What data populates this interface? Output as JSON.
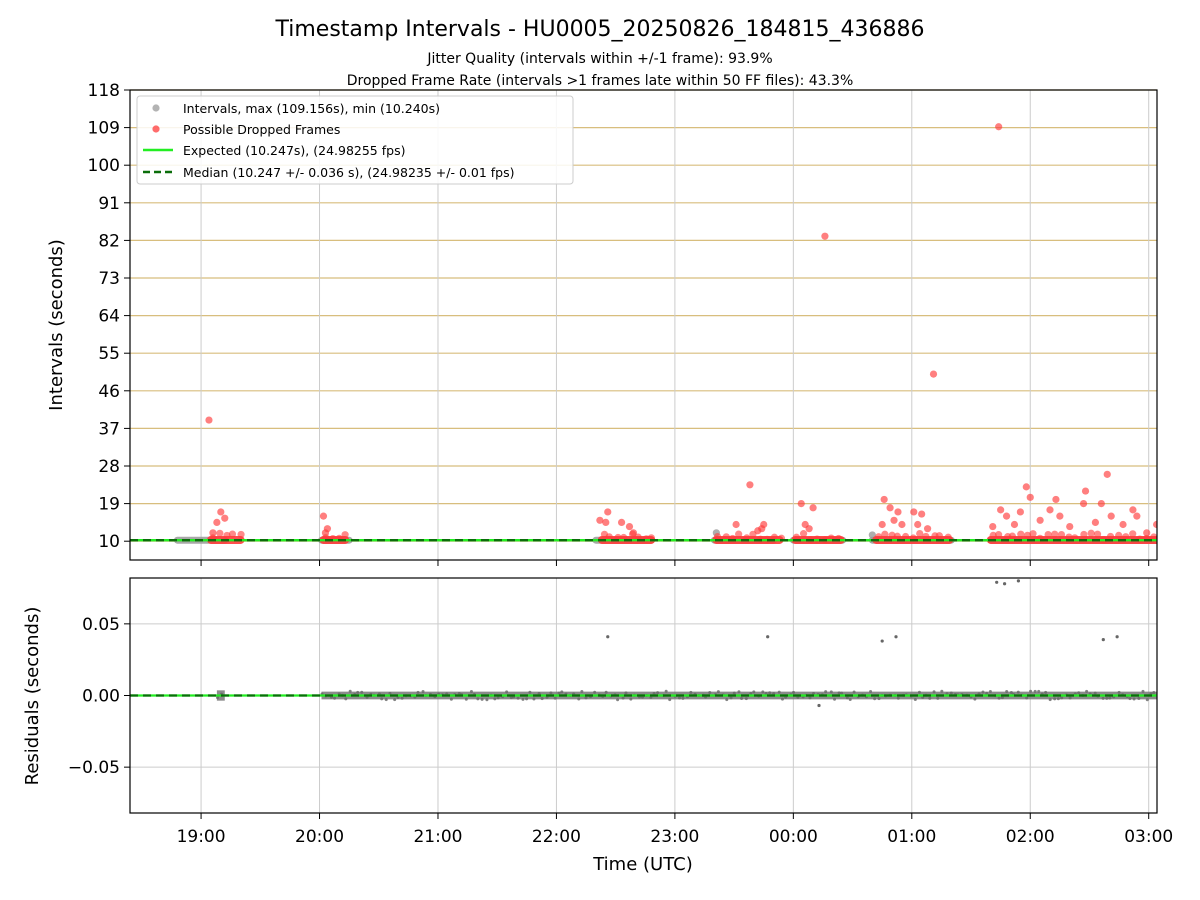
{
  "chart_data": [
    {
      "type": "scatter",
      "title": "Timestamp Intervals - HU0005_20250826_184815_436886",
      "subtitle_lines": [
        "Jitter Quality (intervals within +/-1 frame): 93.9%",
        "Dropped Frame Rate (intervals >1 frames late within 50 FF files): 43.3%"
      ],
      "xlabel": "",
      "ylabel": "Intervals (seconds)",
      "x_range_hours_utc": [
        18.4,
        27.07
      ],
      "ylim": [
        5.5,
        118
      ],
      "y_ticks": [
        10,
        19,
        28,
        37,
        46,
        55,
        64,
        73,
        82,
        91,
        100,
        109,
        118
      ],
      "y_tick_labels": [
        "10",
        "19",
        "28",
        "37",
        "46",
        "55",
        "64",
        "73",
        "82",
        "91",
        "100",
        "109",
        "118"
      ],
      "grid": true,
      "legend": {
        "placement": "top-left",
        "entries": [
          "Intervals, max (109.156s), min (10.240s)",
          "Possible Dropped Frames",
          "Expected (10.247s), (24.98255 fps)",
          "Median (10.247 +/- 0.036 s), (24.98235 +/- 0.01 fps)"
        ]
      },
      "colors": {
        "intervals": "#9a9a9a",
        "dropped": "#ff3b3b",
        "expected": "#22ee22",
        "median": "#0a6e0a",
        "grid_major": "#cccccc",
        "grid_horizontal": "#d8be7e"
      },
      "expected_value": 10.247,
      "median_value": 10.247,
      "interval_bands": [
        {
          "x_start": "18:48",
          "x_end": "19:12",
          "y": 10.24
        },
        {
          "x_start": "20:01",
          "x_end": "20:15",
          "y": 10.24
        },
        {
          "x_start": "22:20",
          "x_end": "22:48",
          "y": 10.24
        },
        {
          "x_start": "23:20",
          "x_end": "23:50",
          "y": 10.24
        },
        {
          "x_start": "00:00",
          "x_end": "00:25",
          "y": 10.24
        },
        {
          "x_start": "00:40",
          "x_end": "01:20",
          "y": 10.24
        },
        {
          "x_start": "01:40",
          "x_end": "03:05",
          "y": 10.24
        }
      ],
      "dropped_frames": [
        {
          "x": "19:04",
          "y": 39
        },
        {
          "x": "19:08",
          "y": 14.5
        },
        {
          "x": "19:10",
          "y": 17
        },
        {
          "x": "19:12",
          "y": 15.5
        },
        {
          "x": "19:06",
          "y": 12
        },
        {
          "x": "20:02",
          "y": 16
        },
        {
          "x": "20:04",
          "y": 13
        },
        {
          "x": "20:03",
          "y": 12
        },
        {
          "x": "22:22",
          "y": 15
        },
        {
          "x": "22:26",
          "y": 17
        },
        {
          "x": "22:25",
          "y": 14.5
        },
        {
          "x": "22:33",
          "y": 14.5
        },
        {
          "x": "22:37",
          "y": 13.5
        },
        {
          "x": "22:39",
          "y": 12
        },
        {
          "x": "23:31",
          "y": 14
        },
        {
          "x": "23:38",
          "y": 23.5
        },
        {
          "x": "23:42",
          "y": 12.5
        },
        {
          "x": "23:45",
          "y": 14
        },
        {
          "x": "23:44",
          "y": 13
        },
        {
          "x": "00:04",
          "y": 19
        },
        {
          "x": "00:06",
          "y": 14
        },
        {
          "x": "00:08",
          "y": 13
        },
        {
          "x": "00:10",
          "y": 18
        },
        {
          "x": "00:16",
          "y": 83
        },
        {
          "x": "00:46",
          "y": 20
        },
        {
          "x": "00:49",
          "y": 18
        },
        {
          "x": "00:51",
          "y": 15
        },
        {
          "x": "00:53",
          "y": 17
        },
        {
          "x": "00:55",
          "y": 14
        },
        {
          "x": "00:45",
          "y": 14
        },
        {
          "x": "01:01",
          "y": 17
        },
        {
          "x": "01:05",
          "y": 16.5
        },
        {
          "x": "01:03",
          "y": 14
        },
        {
          "x": "01:08",
          "y": 13
        },
        {
          "x": "01:11",
          "y": 50
        },
        {
          "x": "01:44",
          "y": 109.2
        },
        {
          "x": "01:41",
          "y": 13.5
        },
        {
          "x": "01:45",
          "y": 17.5
        },
        {
          "x": "01:48",
          "y": 16
        },
        {
          "x": "01:52",
          "y": 14
        },
        {
          "x": "01:55",
          "y": 17
        },
        {
          "x": "01:58",
          "y": 23
        },
        {
          "x": "02:00",
          "y": 20.5
        },
        {
          "x": "02:05",
          "y": 15
        },
        {
          "x": "02:10",
          "y": 17.5
        },
        {
          "x": "02:13",
          "y": 20
        },
        {
          "x": "02:15",
          "y": 16
        },
        {
          "x": "02:20",
          "y": 13.5
        },
        {
          "x": "02:28",
          "y": 22
        },
        {
          "x": "02:27",
          "y": 19
        },
        {
          "x": "02:33",
          "y": 14.5
        },
        {
          "x": "02:36",
          "y": 19
        },
        {
          "x": "02:39",
          "y": 26
        },
        {
          "x": "02:41",
          "y": 16
        },
        {
          "x": "02:47",
          "y": 14
        },
        {
          "x": "02:52",
          "y": 17.5
        },
        {
          "x": "02:54",
          "y": 16
        },
        {
          "x": "02:59",
          "y": 12
        },
        {
          "x": "03:04",
          "y": 14
        }
      ],
      "dropped_bands": [
        {
          "x_start": "19:05",
          "x_end": "19:20"
        },
        {
          "x_start": "20:02",
          "x_end": "20:13"
        },
        {
          "x_start": "22:23",
          "x_end": "22:48"
        },
        {
          "x_start": "23:21",
          "x_end": "23:53"
        },
        {
          "x_start": "00:01",
          "x_end": "00:24"
        },
        {
          "x_start": "00:42",
          "x_end": "01:19"
        },
        {
          "x_start": "01:40",
          "x_end": "03:05"
        }
      ]
    },
    {
      "type": "scatter",
      "xlabel": "Time (UTC)",
      "ylabel": "Residuals (seconds)",
      "ylim": [
        -0.082,
        0.082
      ],
      "y_ticks": [
        -0.05,
        0.0,
        0.05
      ],
      "y_tick_labels": [
        "−0.05",
        "0.00",
        "0.05"
      ],
      "x_ticks": [
        "19:00",
        "20:00",
        "21:00",
        "22:00",
        "23:00",
        "00:00",
        "01:00",
        "02:00",
        "03:00"
      ],
      "grid": true,
      "residual_bands": [
        {
          "x_start": "19:08",
          "x_end": "19:12",
          "spread": 0.004
        },
        {
          "x_start": "20:01",
          "x_end": "03:05",
          "spread": 0.003
        }
      ],
      "residual_outliers": [
        {
          "x": "22:26",
          "y": 0.041
        },
        {
          "x": "23:47",
          "y": 0.041
        },
        {
          "x": "00:45",
          "y": 0.038
        },
        {
          "x": "00:52",
          "y": 0.041
        },
        {
          "x": "02:37",
          "y": 0.039
        },
        {
          "x": "02:44",
          "y": 0.041
        },
        {
          "x": "00:13",
          "y": -0.007
        },
        {
          "x": "01:43",
          "y": 0.079
        },
        {
          "x": "01:47",
          "y": 0.078
        },
        {
          "x": "01:54",
          "y": 0.08
        }
      ]
    }
  ]
}
